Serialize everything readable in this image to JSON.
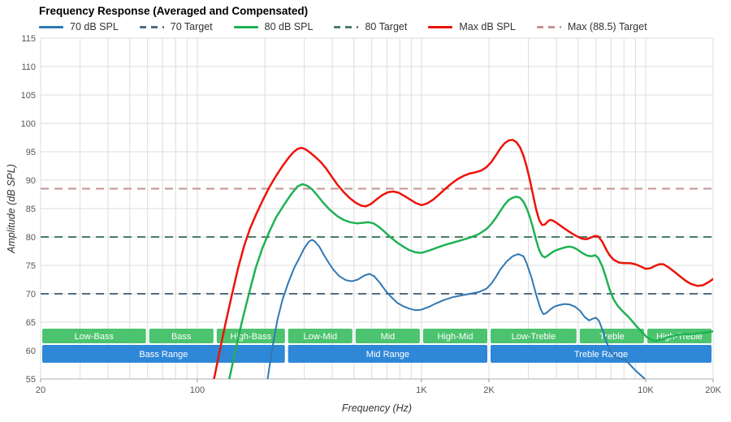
{
  "title": "Frequency Response (Averaged and Compensated)",
  "legend": {
    "items": [
      {
        "label": "70 dB SPL",
        "color": "#3178b4",
        "dash": false
      },
      {
        "label": "70 Target",
        "color": "#4f6d85",
        "dash": true
      },
      {
        "label": "80 dB SPL",
        "color": "#1fb254",
        "dash": false
      },
      {
        "label": "80 Target",
        "color": "#4a7d68",
        "dash": true
      },
      {
        "label": "Max dB SPL",
        "color": "#ed1309",
        "dash": false
      },
      {
        "label": "Max (88.5) Target",
        "color": "#c49292",
        "dash": true
      }
    ]
  },
  "chart_data": {
    "type": "line",
    "title": "Frequency Response (Averaged and Compensated)",
    "xlabel": "Frequency (Hz)",
    "ylabel": "Amplitude (dB SPL)",
    "x_scale": "log",
    "xlim": [
      20,
      20000
    ],
    "ylim": [
      55,
      115
    ],
    "grid": true,
    "y_ticks": [
      55,
      60,
      65,
      70,
      75,
      80,
      85,
      90,
      95,
      100,
      105,
      110,
      115
    ],
    "x_tick_labels": [
      {
        "value": 20,
        "label": "20"
      },
      {
        "value": 100,
        "label": "100"
      },
      {
        "value": 1000,
        "label": "1K"
      },
      {
        "value": 2000,
        "label": "2K"
      },
      {
        "value": 10000,
        "label": "10K"
      },
      {
        "value": 20000,
        "label": "20K"
      }
    ],
    "colors": {
      "grid": "#dcdcdc",
      "axis": "#b0b0b0",
      "tick_text": "#555555",
      "band_green": "#4cc36e",
      "band_blue": "#2f87d8"
    },
    "targets": [
      {
        "name": "70 Target",
        "value": 70,
        "color": "#4f6d85"
      },
      {
        "name": "80 Target",
        "value": 80,
        "color": "#4a7d68"
      },
      {
        "name": "Max (88.5) Target",
        "value": 88.5,
        "color": "#c49292"
      }
    ],
    "bands": [
      {
        "color": "#4cc36e",
        "segments": [
          {
            "from": 20,
            "to": 60,
            "label": "Low-Bass"
          },
          {
            "from": 60,
            "to": 120,
            "label": "Bass"
          },
          {
            "from": 120,
            "to": 250,
            "label": "High-Bass"
          },
          {
            "from": 250,
            "to": 500,
            "label": "Low-Mid"
          },
          {
            "from": 500,
            "to": 1000,
            "label": "Mid"
          },
          {
            "from": 1000,
            "to": 2000,
            "label": "High-Mid"
          },
          {
            "from": 2000,
            "to": 5000,
            "label": "Low-Treble"
          },
          {
            "from": 5000,
            "to": 10000,
            "label": "Treble"
          },
          {
            "from": 10000,
            "to": 20000,
            "label": "High-Treble"
          }
        ]
      },
      {
        "color": "#2f87d8",
        "segments": [
          {
            "from": 20,
            "to": 250,
            "label": "Bass Range"
          },
          {
            "from": 250,
            "to": 2000,
            "label": "Mid Range"
          },
          {
            "from": 2000,
            "to": 20000,
            "label": "Treble Range"
          }
        ]
      }
    ],
    "series": [
      {
        "name": "70 dB SPL",
        "color": "#3178b4",
        "width": 2,
        "points": [
          [
            205,
            54.5
          ],
          [
            215,
            60
          ],
          [
            228,
            65.5
          ],
          [
            240,
            69
          ],
          [
            255,
            72
          ],
          [
            270,
            74.5
          ],
          [
            285,
            76.3
          ],
          [
            300,
            78
          ],
          [
            315,
            79.2
          ],
          [
            325,
            79.5
          ],
          [
            335,
            79.2
          ],
          [
            350,
            78.3
          ],
          [
            365,
            77
          ],
          [
            385,
            75.5
          ],
          [
            405,
            74.2
          ],
          [
            430,
            73.1
          ],
          [
            460,
            72.4
          ],
          [
            490,
            72.2
          ],
          [
            520,
            72.5
          ],
          [
            555,
            73.2
          ],
          [
            585,
            73.5
          ],
          [
            615,
            73.1
          ],
          [
            650,
            72
          ],
          [
            690,
            70.6
          ],
          [
            730,
            69.5
          ],
          [
            780,
            68.4
          ],
          [
            830,
            67.8
          ],
          [
            880,
            67.4
          ],
          [
            940,
            67.1
          ],
          [
            1000,
            67.2
          ],
          [
            1080,
            67.7
          ],
          [
            1160,
            68.3
          ],
          [
            1260,
            68.9
          ],
          [
            1380,
            69.4
          ],
          [
            1500,
            69.7
          ],
          [
            1650,
            70
          ],
          [
            1800,
            70.3
          ],
          [
            1950,
            70.9
          ],
          [
            2050,
            71.8
          ],
          [
            2150,
            73
          ],
          [
            2250,
            74.3
          ],
          [
            2400,
            75.7
          ],
          [
            2550,
            76.6
          ],
          [
            2700,
            77
          ],
          [
            2850,
            76.6
          ],
          [
            2950,
            75.3
          ],
          [
            3100,
            72.8
          ],
          [
            3250,
            69.8
          ],
          [
            3400,
            67.3
          ],
          [
            3500,
            66.4
          ],
          [
            3600,
            66.6
          ],
          [
            3750,
            67.2
          ],
          [
            3900,
            67.7
          ],
          [
            4100,
            68
          ],
          [
            4350,
            68.2
          ],
          [
            4600,
            68.1
          ],
          [
            4850,
            67.7
          ],
          [
            5100,
            67
          ],
          [
            5350,
            65.9
          ],
          [
            5600,
            65.3
          ],
          [
            5800,
            65.6
          ],
          [
            6000,
            65.8
          ],
          [
            6200,
            65.2
          ],
          [
            6450,
            63.4
          ],
          [
            6700,
            61.4
          ],
          [
            7000,
            59.7
          ],
          [
            7300,
            58.9
          ],
          [
            7600,
            58.6
          ],
          [
            8000,
            58.5
          ],
          [
            8400,
            57.8
          ],
          [
            8800,
            56.9
          ],
          [
            9300,
            56
          ],
          [
            9800,
            55.2
          ],
          [
            10300,
            54.3
          ],
          [
            10800,
            53.2
          ]
        ]
      },
      {
        "name": "80 dB SPL",
        "color": "#1fb254",
        "width": 2.5,
        "points": [
          [
            138,
            54.5
          ],
          [
            148,
            60
          ],
          [
            158,
            65
          ],
          [
            170,
            70
          ],
          [
            182,
            74.5
          ],
          [
            195,
            78
          ],
          [
            210,
            81
          ],
          [
            225,
            83.5
          ],
          [
            245,
            85.8
          ],
          [
            262,
            87.5
          ],
          [
            280,
            88.9
          ],
          [
            295,
            89.3
          ],
          [
            310,
            89
          ],
          [
            325,
            88.4
          ],
          [
            345,
            87.2
          ],
          [
            365,
            86
          ],
          [
            390,
            84.8
          ],
          [
            420,
            83.7
          ],
          [
            450,
            83
          ],
          [
            480,
            82.6
          ],
          [
            515,
            82.4
          ],
          [
            550,
            82.5
          ],
          [
            580,
            82.6
          ],
          [
            610,
            82.4
          ],
          [
            645,
            81.8
          ],
          [
            685,
            80.9
          ],
          [
            730,
            79.9
          ],
          [
            780,
            79
          ],
          [
            830,
            78.3
          ],
          [
            880,
            77.7
          ],
          [
            940,
            77.3
          ],
          [
            1000,
            77.2
          ],
          [
            1080,
            77.6
          ],
          [
            1170,
            78.1
          ],
          [
            1270,
            78.6
          ],
          [
            1380,
            79
          ],
          [
            1500,
            79.4
          ],
          [
            1650,
            79.9
          ],
          [
            1800,
            80.5
          ],
          [
            1950,
            81.4
          ],
          [
            2050,
            82.3
          ],
          [
            2150,
            83.4
          ],
          [
            2250,
            84.6
          ],
          [
            2350,
            85.7
          ],
          [
            2450,
            86.5
          ],
          [
            2550,
            86.9
          ],
          [
            2650,
            87.1
          ],
          [
            2750,
            86.9
          ],
          [
            2850,
            86.2
          ],
          [
            2950,
            85
          ],
          [
            3050,
            83.4
          ],
          [
            3150,
            81.5
          ],
          [
            3250,
            79.4
          ],
          [
            3350,
            77.7
          ],
          [
            3450,
            76.7
          ],
          [
            3550,
            76.4
          ],
          [
            3650,
            76.7
          ],
          [
            3800,
            77.2
          ],
          [
            3950,
            77.6
          ],
          [
            4150,
            77.9
          ],
          [
            4400,
            78.2
          ],
          [
            4600,
            78.3
          ],
          [
            4800,
            78.1
          ],
          [
            5000,
            77.7
          ],
          [
            5250,
            77.1
          ],
          [
            5500,
            76.7
          ],
          [
            5750,
            76.6
          ],
          [
            5950,
            76.8
          ],
          [
            6150,
            76.3
          ],
          [
            6400,
            74.9
          ],
          [
            6650,
            72.9
          ],
          [
            6900,
            70.8
          ],
          [
            7200,
            69
          ],
          [
            7500,
            67.9
          ],
          [
            7900,
            66.9
          ],
          [
            8300,
            66.1
          ],
          [
            8700,
            65.2
          ],
          [
            9100,
            64.3
          ],
          [
            9600,
            63.3
          ],
          [
            10100,
            62.4
          ],
          [
            10600,
            61.9
          ],
          [
            11100,
            61.7
          ],
          [
            11700,
            61.9
          ],
          [
            12300,
            62.2
          ],
          [
            13000,
            62.5
          ],
          [
            14000,
            62.8
          ],
          [
            15000,
            62.9
          ],
          [
            16000,
            62.9
          ],
          [
            17000,
            63
          ],
          [
            18000,
            63.1
          ],
          [
            19000,
            63.2
          ],
          [
            20000,
            63.4
          ]
        ]
      },
      {
        "name": "Max dB SPL",
        "color": "#ed1309",
        "width": 2.5,
        "points": [
          [
            118,
            54.5
          ],
          [
            126,
            60
          ],
          [
            134,
            65
          ],
          [
            143,
            70
          ],
          [
            152,
            74.5
          ],
          [
            162,
            78.5
          ],
          [
            172,
            81.5
          ],
          [
            183,
            84
          ],
          [
            196,
            86.5
          ],
          [
            210,
            88.8
          ],
          [
            225,
            90.8
          ],
          [
            240,
            92.5
          ],
          [
            255,
            93.9
          ],
          [
            268,
            94.9
          ],
          [
            280,
            95.5
          ],
          [
            292,
            95.7
          ],
          [
            305,
            95.4
          ],
          [
            320,
            94.8
          ],
          [
            338,
            94
          ],
          [
            355,
            93.2
          ],
          [
            375,
            92.1
          ],
          [
            395,
            90.8
          ],
          [
            420,
            89.3
          ],
          [
            450,
            87.9
          ],
          [
            480,
            86.8
          ],
          [
            510,
            86
          ],
          [
            540,
            85.5
          ],
          [
            565,
            85.4
          ],
          [
            595,
            85.8
          ],
          [
            630,
            86.6
          ],
          [
            670,
            87.4
          ],
          [
            710,
            87.9
          ],
          [
            750,
            88
          ],
          [
            790,
            87.8
          ],
          [
            840,
            87.2
          ],
          [
            890,
            86.6
          ],
          [
            940,
            86
          ],
          [
            1000,
            85.6
          ],
          [
            1060,
            85.9
          ],
          [
            1130,
            86.6
          ],
          [
            1200,
            87.5
          ],
          [
            1280,
            88.5
          ],
          [
            1360,
            89.4
          ],
          [
            1450,
            90.2
          ],
          [
            1550,
            90.8
          ],
          [
            1650,
            91.2
          ],
          [
            1750,
            91.4
          ],
          [
            1850,
            91.7
          ],
          [
            1950,
            92.3
          ],
          [
            2050,
            93.2
          ],
          [
            2150,
            94.4
          ],
          [
            2250,
            95.6
          ],
          [
            2350,
            96.5
          ],
          [
            2450,
            97
          ],
          [
            2550,
            97.1
          ],
          [
            2650,
            96.7
          ],
          [
            2750,
            95.8
          ],
          [
            2850,
            94.3
          ],
          [
            2950,
            92.3
          ],
          [
            3050,
            89.9
          ],
          [
            3150,
            87.3
          ],
          [
            3250,
            84.8
          ],
          [
            3350,
            83
          ],
          [
            3450,
            82.1
          ],
          [
            3550,
            82.2
          ],
          [
            3650,
            82.7
          ],
          [
            3750,
            83
          ],
          [
            3850,
            82.9
          ],
          [
            4000,
            82.5
          ],
          [
            4200,
            81.9
          ],
          [
            4450,
            81.2
          ],
          [
            4700,
            80.6
          ],
          [
            4950,
            80.1
          ],
          [
            5200,
            79.7
          ],
          [
            5450,
            79.6
          ],
          [
            5700,
            79.9
          ],
          [
            5950,
            80.2
          ],
          [
            6150,
            80.1
          ],
          [
            6400,
            79.2
          ],
          [
            6650,
            77.9
          ],
          [
            6900,
            76.8
          ],
          [
            7200,
            76
          ],
          [
            7600,
            75.5
          ],
          [
            8000,
            75.4
          ],
          [
            8500,
            75.4
          ],
          [
            9000,
            75.2
          ],
          [
            9500,
            74.8
          ],
          [
            10000,
            74.4
          ],
          [
            10500,
            74.5
          ],
          [
            11000,
            74.9
          ],
          [
            11500,
            75.2
          ],
          [
            12000,
            75.2
          ],
          [
            12700,
            74.6
          ],
          [
            13500,
            73.8
          ],
          [
            14300,
            73
          ],
          [
            15200,
            72.2
          ],
          [
            16000,
            71.7
          ],
          [
            17000,
            71.4
          ],
          [
            18000,
            71.5
          ],
          [
            19000,
            72
          ],
          [
            20000,
            72.6
          ]
        ]
      }
    ]
  }
}
